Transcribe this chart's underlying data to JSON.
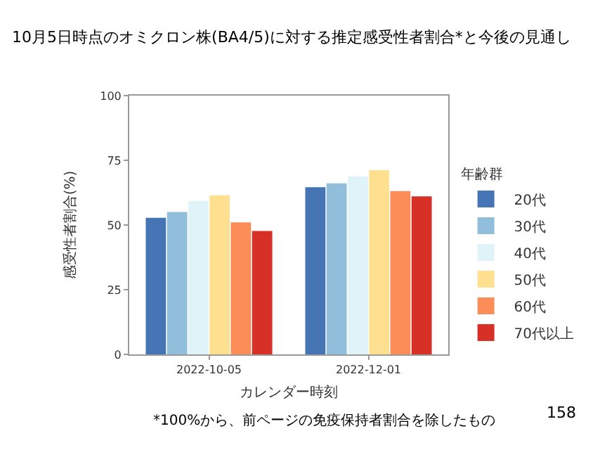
{
  "chart_data": {
    "type": "bar",
    "title": "10月5日時点のオミクロン株(BA4/5)に対する推定感受性者割合*と今後の見通し",
    "xlabel": "カレンダー時刻",
    "ylabel": "感受性者割合(%)",
    "legend_title": "年齢群",
    "categories": [
      "2022-10-05",
      "2022-12-01"
    ],
    "series": [
      {
        "name": "20代",
        "color": "#4575b4",
        "values": [
          52.8,
          64.6
        ]
      },
      {
        "name": "30代",
        "color": "#91bfdb",
        "values": [
          55.0,
          66.1
        ]
      },
      {
        "name": "40代",
        "color": "#e0f3f8",
        "values": [
          59.3,
          68.8
        ]
      },
      {
        "name": "50代",
        "color": "#fee090",
        "values": [
          61.5,
          71.2
        ]
      },
      {
        "name": "60代",
        "color": "#fc8d59",
        "values": [
          51.0,
          63.1
        ]
      },
      {
        "name": "70代以上",
        "color": "#d73027",
        "values": [
          47.7,
          61.1
        ]
      }
    ],
    "ylim": [
      0,
      100
    ],
    "yticks": [
      0,
      25,
      50,
      75,
      100
    ],
    "legend": "right",
    "annotations": [
      "*100%から、前ページの免疫保持者割合を除したもの",
      "158"
    ]
  }
}
